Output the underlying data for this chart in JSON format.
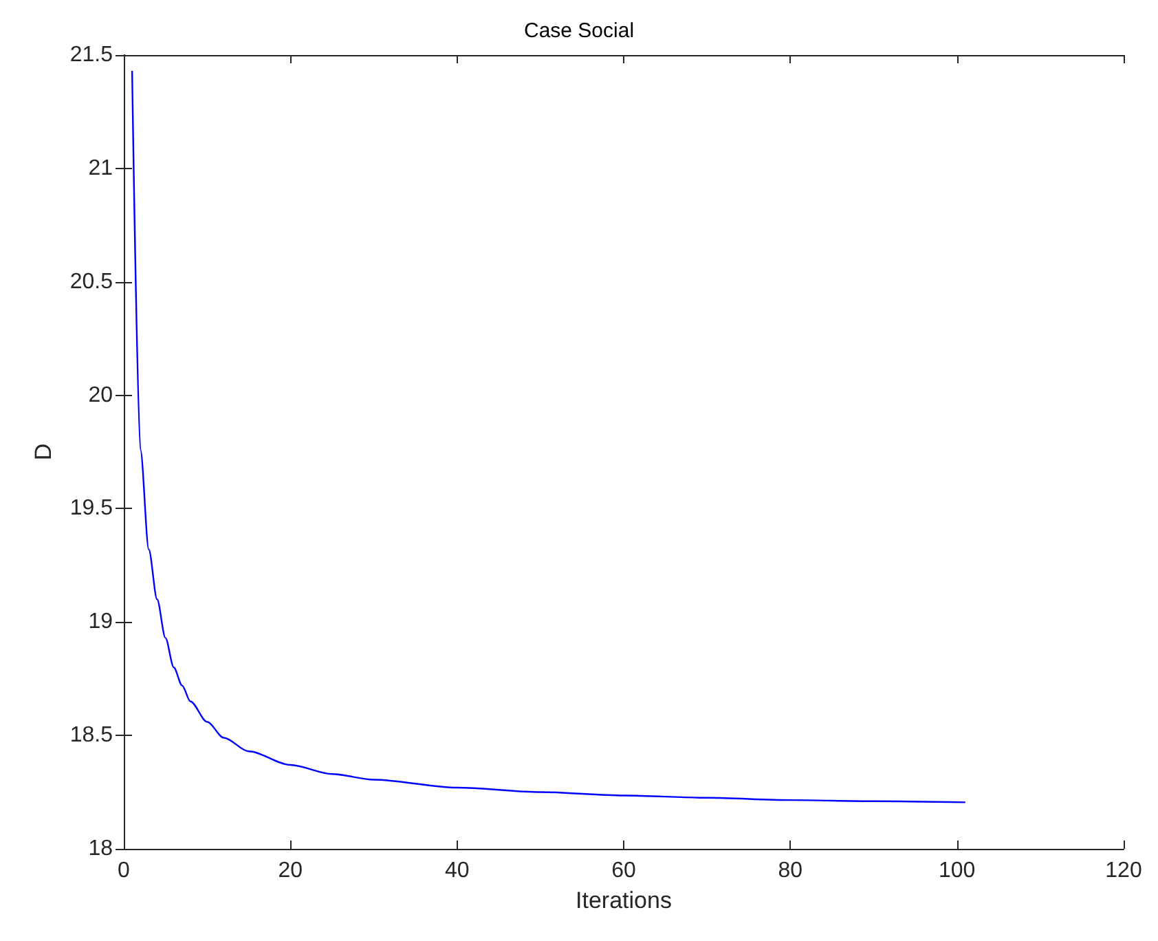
{
  "chart_data": {
    "type": "line",
    "title": "Case Social",
    "xlabel": "Iterations",
    "ylabel": "D",
    "x": [
      1,
      2,
      3,
      4,
      5,
      6,
      7,
      8,
      10,
      12,
      15,
      20,
      25,
      30,
      40,
      50,
      60,
      70,
      80,
      90,
      101
    ],
    "series": [
      {
        "color": "#0000ff",
        "values": [
          21.43,
          19.76,
          19.32,
          19.1,
          18.93,
          18.8,
          18.72,
          18.65,
          18.56,
          18.49,
          18.43,
          18.37,
          18.33,
          18.305,
          18.27,
          18.25,
          18.235,
          18.225,
          18.215,
          18.21,
          18.205
        ]
      }
    ],
    "xlim": [
      0,
      120
    ],
    "xticks": [
      0,
      20,
      40,
      60,
      80,
      100,
      120
    ],
    "ylim": [
      18,
      21.5
    ],
    "yticks": [
      18,
      18.5,
      19,
      19.5,
      20,
      20.5,
      21,
      21.5
    ],
    "grid": false,
    "marker": "none",
    "line_style": "solid"
  }
}
